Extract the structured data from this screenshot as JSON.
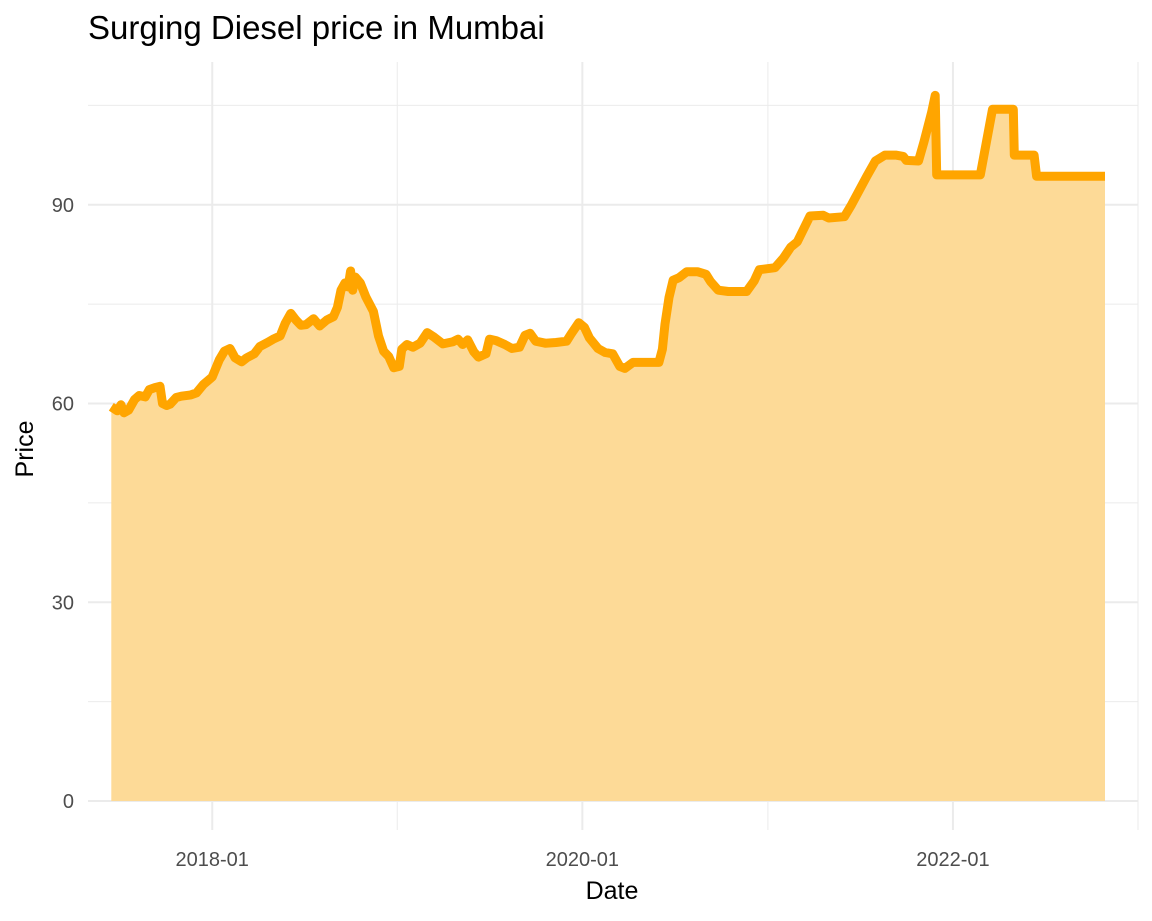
{
  "chart_data": {
    "type": "area",
    "title": "Surging Diesel price in Mumbai",
    "xlabel": "Date",
    "ylabel": "Price",
    "x_scale": "date",
    "xlim": [
      "2017-05-01",
      "2023-01-01"
    ],
    "ylim": [
      0,
      105
    ],
    "y_ticks": [
      0,
      30,
      60,
      90
    ],
    "y_tick_labels": [
      "0",
      "30",
      "60",
      "90"
    ],
    "x_ticks": [
      "2018-01-01",
      "2020-01-01",
      "2022-01-01"
    ],
    "x_tick_labels": [
      "2018-01",
      "2020-01",
      "2022-01"
    ],
    "grid": true,
    "legend": "none",
    "colors": {
      "line": "#FFA500",
      "fill": "#FDD995",
      "grid": "#EBEBEB"
    },
    "series": [
      {
        "points": [
          [
            "2017-06-16",
            59.5
          ],
          [
            "2017-06-28",
            58.9
          ],
          [
            "2017-07-05",
            59.8
          ],
          [
            "2017-07-11",
            58.6
          ],
          [
            "2017-07-20",
            59.0
          ],
          [
            "2017-08-01",
            60.6
          ],
          [
            "2017-08-10",
            61.2
          ],
          [
            "2017-08-22",
            61.0
          ],
          [
            "2017-08-30",
            62.1
          ],
          [
            "2017-09-10",
            62.4
          ],
          [
            "2017-09-20",
            62.6
          ],
          [
            "2017-09-25",
            60.0
          ],
          [
            "2017-10-03",
            59.7
          ],
          [
            "2017-10-10",
            59.9
          ],
          [
            "2017-10-22",
            60.9
          ],
          [
            "2017-11-01",
            61.1
          ],
          [
            "2017-11-20",
            61.3
          ],
          [
            "2017-12-01",
            61.6
          ],
          [
            "2017-12-15",
            62.9
          ],
          [
            "2018-01-01",
            64.0
          ],
          [
            "2018-01-15",
            66.6
          ],
          [
            "2018-01-25",
            67.9
          ],
          [
            "2018-02-05",
            68.3
          ],
          [
            "2018-02-15",
            66.9
          ],
          [
            "2018-02-28",
            66.3
          ],
          [
            "2018-03-10",
            66.9
          ],
          [
            "2018-03-25",
            67.5
          ],
          [
            "2018-04-05",
            68.6
          ],
          [
            "2018-04-20",
            69.2
          ],
          [
            "2018-05-01",
            69.7
          ],
          [
            "2018-05-15",
            70.2
          ],
          [
            "2018-05-25",
            72.1
          ],
          [
            "2018-06-05",
            73.6
          ],
          [
            "2018-06-15",
            72.6
          ],
          [
            "2018-06-25",
            71.8
          ],
          [
            "2018-07-05",
            71.9
          ],
          [
            "2018-07-20",
            72.8
          ],
          [
            "2018-08-01",
            71.7
          ],
          [
            "2018-08-15",
            72.6
          ],
          [
            "2018-08-28",
            73.1
          ],
          [
            "2018-09-05",
            74.5
          ],
          [
            "2018-09-12",
            77.1
          ],
          [
            "2018-09-20",
            78.2
          ],
          [
            "2018-09-26",
            77.6
          ],
          [
            "2018-10-01",
            80.0
          ],
          [
            "2018-10-05",
            77.1
          ],
          [
            "2018-10-10",
            79.1
          ],
          [
            "2018-10-20",
            78.2
          ],
          [
            "2018-10-31",
            76.1
          ],
          [
            "2018-11-15",
            73.9
          ],
          [
            "2018-11-25",
            70.2
          ],
          [
            "2018-12-05",
            67.9
          ],
          [
            "2018-12-15",
            67.1
          ],
          [
            "2018-12-25",
            65.4
          ],
          [
            "2019-01-05",
            65.6
          ],
          [
            "2019-01-10",
            68.2
          ],
          [
            "2019-01-20",
            68.9
          ],
          [
            "2019-02-01",
            68.5
          ],
          [
            "2019-02-15",
            69.1
          ],
          [
            "2019-03-01",
            70.7
          ],
          [
            "2019-03-15",
            70.0
          ],
          [
            "2019-04-01",
            69.0
          ],
          [
            "2019-04-20",
            69.3
          ],
          [
            "2019-05-01",
            69.7
          ],
          [
            "2019-05-10",
            68.9
          ],
          [
            "2019-05-20",
            69.6
          ],
          [
            "2019-06-01",
            67.8
          ],
          [
            "2019-06-10",
            67.0
          ],
          [
            "2019-06-25",
            67.5
          ],
          [
            "2019-07-02",
            69.7
          ],
          [
            "2019-07-15",
            69.5
          ],
          [
            "2019-08-01",
            68.9
          ],
          [
            "2019-08-15",
            68.3
          ],
          [
            "2019-08-30",
            68.5
          ],
          [
            "2019-09-10",
            70.3
          ],
          [
            "2019-09-20",
            70.6
          ],
          [
            "2019-10-01",
            69.4
          ],
          [
            "2019-10-20",
            69.1
          ],
          [
            "2019-11-10",
            69.2
          ],
          [
            "2019-12-01",
            69.4
          ],
          [
            "2019-12-10",
            70.5
          ],
          [
            "2019-12-25",
            72.2
          ],
          [
            "2020-01-05",
            71.5
          ],
          [
            "2020-01-15",
            69.9
          ],
          [
            "2020-02-01",
            68.3
          ],
          [
            "2020-02-15",
            67.7
          ],
          [
            "2020-03-01",
            67.5
          ],
          [
            "2020-03-15",
            65.6
          ],
          [
            "2020-03-25",
            65.3
          ],
          [
            "2020-04-10",
            66.2
          ],
          [
            "2020-05-01",
            66.2
          ],
          [
            "2020-05-31",
            66.2
          ],
          [
            "2020-06-07",
            68.2
          ],
          [
            "2020-06-12",
            72.0
          ],
          [
            "2020-06-20",
            76.0
          ],
          [
            "2020-06-28",
            78.6
          ],
          [
            "2020-07-10",
            79.0
          ],
          [
            "2020-07-25",
            79.9
          ],
          [
            "2020-08-15",
            79.9
          ],
          [
            "2020-09-01",
            79.5
          ],
          [
            "2020-09-10",
            78.4
          ],
          [
            "2020-09-25",
            77.1
          ],
          [
            "2020-10-15",
            76.9
          ],
          [
            "2020-11-20",
            76.9
          ],
          [
            "2020-12-05",
            78.5
          ],
          [
            "2020-12-15",
            80.2
          ],
          [
            "2021-01-15",
            80.5
          ],
          [
            "2021-02-01",
            82.0
          ],
          [
            "2021-02-15",
            83.6
          ],
          [
            "2021-02-28",
            84.4
          ],
          [
            "2021-03-25",
            88.3
          ],
          [
            "2021-04-20",
            88.4
          ],
          [
            "2021-05-01",
            88.0
          ],
          [
            "2021-06-01",
            88.2
          ],
          [
            "2021-06-15",
            90.0
          ],
          [
            "2021-07-15",
            94.3
          ],
          [
            "2021-08-01",
            96.6
          ],
          [
            "2021-08-20",
            97.5
          ],
          [
            "2021-09-10",
            97.5
          ],
          [
            "2021-09-25",
            97.3
          ],
          [
            "2021-10-01",
            96.7
          ],
          [
            "2021-10-25",
            96.6
          ],
          [
            "2021-11-05",
            99.5
          ],
          [
            "2021-11-20",
            104.0
          ],
          [
            "2021-11-27",
            106.5
          ],
          [
            "2021-11-30",
            94.5
          ],
          [
            "2022-01-01",
            94.5
          ],
          [
            "2022-02-01",
            94.5
          ],
          [
            "2022-02-24",
            94.5
          ],
          [
            "2022-03-20",
            104.4
          ],
          [
            "2022-04-30",
            104.4
          ],
          [
            "2022-05-02",
            97.5
          ],
          [
            "2022-06-10",
            97.5
          ],
          [
            "2022-06-15",
            94.3
          ],
          [
            "2022-10-28",
            94.3
          ]
        ]
      }
    ]
  }
}
